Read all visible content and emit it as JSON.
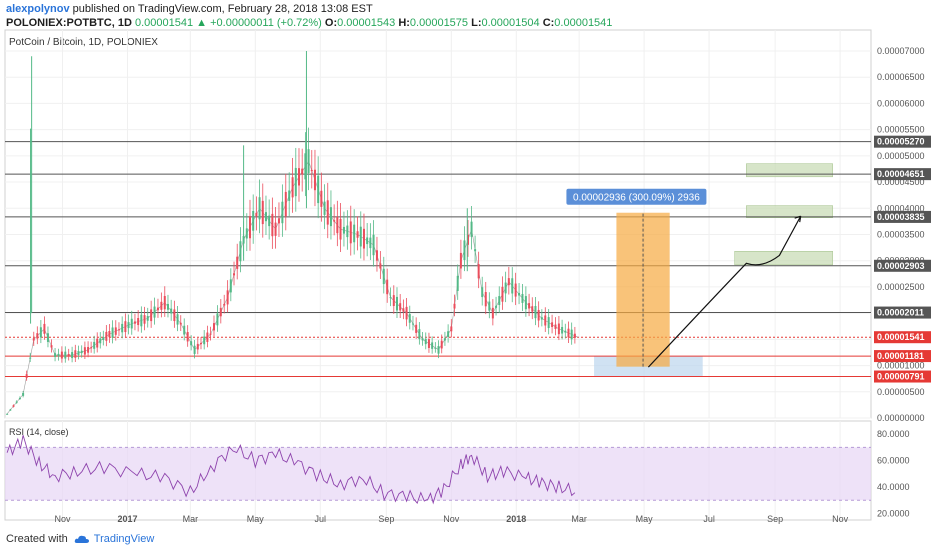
{
  "header": {
    "author": "alexpolynov",
    "published": "published on TradingView.com, February 28, 2018 13:08 EST",
    "symbol": "POLONIEX:POTBTC, 1D",
    "last": "0.00001541",
    "change": "+0.00000011 (+0.72%)",
    "o_label": "O:",
    "o": "0.00001543",
    "h_label": "H:",
    "h": "0.00001575",
    "l_label": "L:",
    "l": "0.00001504",
    "c_label": "C:",
    "c": "0.00001541"
  },
  "footer": {
    "created_with": "Created with",
    "brand": "TradingView"
  },
  "chart_data": {
    "type": "candlestick",
    "title": "PotCoin / Bitcoin, 1D, POLONIEX",
    "y_ticks": [
      "0.00007000",
      "0.00006500",
      "0.00006000",
      "0.00005500",
      "0.00005000",
      "0.00004500",
      "0.00004000",
      "0.00003500",
      "0.00003000",
      "0.00002500",
      "0.00002000",
      "0.00001500",
      "0.00001000",
      "0.00000500",
      "0.00000000"
    ],
    "x_labels": [
      "Nov",
      "2017",
      "Mar",
      "May",
      "Jul",
      "Sep",
      "Nov",
      "2018",
      "Mar",
      "May",
      "Jul",
      "Sep",
      "Nov"
    ],
    "ylim": [
      0,
      7.4e-05
    ],
    "xlim": [
      "2016-09-08",
      "2018-11-30"
    ],
    "price_series": [
      [
        "2016-09-10",
        8e-07
      ],
      [
        "2016-09-25",
        4.5e-06
      ],
      [
        "2016-10-05",
        1.5e-05
      ],
      [
        "2016-10-15",
        1.7e-05
      ],
      [
        "2016-10-25",
        1.2e-05
      ],
      [
        "2016-11-10",
        1.2e-05
      ],
      [
        "2016-11-25",
        1.3e-05
      ],
      [
        "2016-12-15",
        1.6e-05
      ],
      [
        "2017-01-05",
        1.8e-05
      ],
      [
        "2017-01-20",
        1.9e-05
      ],
      [
        "2017-02-05",
        2.2e-05
      ],
      [
        "2017-02-20",
        1.8e-05
      ],
      [
        "2017-03-05",
        1.3e-05
      ],
      [
        "2017-03-20",
        1.6e-05
      ],
      [
        "2017-04-05",
        2.3e-05
      ],
      [
        "2017-04-20",
        3.4e-05
      ],
      [
        "2017-05-05",
        4e-05
      ],
      [
        "2017-05-20",
        3.6e-05
      ],
      [
        "2017-06-05",
        4.4e-05
      ],
      [
        "2017-06-20",
        4.9e-05
      ],
      [
        "2017-07-05",
        4e-05
      ],
      [
        "2017-07-20",
        3.6e-05
      ],
      [
        "2017-08-05",
        3.5e-05
      ],
      [
        "2017-08-20",
        3.3e-05
      ],
      [
        "2017-09-05",
        2.3e-05
      ],
      [
        "2017-09-20",
        2e-05
      ],
      [
        "2017-10-05",
        1.5e-05
      ],
      [
        "2017-10-20",
        1.3e-05
      ],
      [
        "2017-11-01",
        1.7e-05
      ],
      [
        "2017-11-10",
        3e-05
      ],
      [
        "2017-11-20",
        3.6e-05
      ],
      [
        "2017-11-30",
        2.4e-05
      ],
      [
        "2017-12-10",
        2e-05
      ],
      [
        "2017-12-25",
        2.6e-05
      ],
      [
        "2018-01-10",
        2.2e-05
      ],
      [
        "2018-01-25",
        1.9e-05
      ],
      [
        "2018-02-10",
        1.7e-05
      ],
      [
        "2018-02-28",
        1.541e-05
      ]
    ],
    "horizontal_levels": [
      {
        "value": 5.27e-05,
        "label": "0.00005270",
        "color": "#555555"
      },
      {
        "value": 4.651e-05,
        "label": "0.00004651",
        "color": "#555555"
      },
      {
        "value": 3.835e-05,
        "label": "0.00003835",
        "color": "#555555"
      },
      {
        "value": 2.903e-05,
        "label": "0.00002903",
        "color": "#555555"
      },
      {
        "value": 2.011e-05,
        "label": "0.00002011",
        "color": "#555555"
      },
      {
        "value": 1.541e-05,
        "label": "0.00001541",
        "color": "#e53935"
      },
      {
        "value": 1.181e-05,
        "label": "0.00001181",
        "color": "#e53935"
      },
      {
        "value": 7.91e-06,
        "label": "0.00000791",
        "color": "#e53935"
      }
    ],
    "measure": {
      "from": 9.79e-06,
      "to": 3.915e-05,
      "label": "0.00002936 (300.09%) 2936",
      "color": "#f7a940"
    },
    "target_zones": [
      {
        "bottom": 4.6e-05,
        "top": 4.85e-05
      },
      {
        "bottom": 3.82e-05,
        "top": 4.05e-05
      },
      {
        "bottom": 2.92e-05,
        "top": 3.18e-05
      }
    ],
    "buy_zone": {
      "bottom": 8e-06,
      "top": 1.18e-05
    },
    "rsi": {
      "label": "RSI (14, close)",
      "y_ticks": [
        "80.0000",
        "60.0000",
        "40.0000",
        "20.0000"
      ],
      "ylim": [
        15,
        90
      ],
      "band": [
        30,
        70
      ],
      "series": [
        [
          "2016-09-10",
          66
        ],
        [
          "2016-09-25",
          75
        ],
        [
          "2016-10-10",
          58
        ],
        [
          "2016-10-25",
          48
        ],
        [
          "2016-11-15",
          52
        ],
        [
          "2016-12-10",
          55
        ],
        [
          "2017-01-10",
          50
        ],
        [
          "2017-02-05",
          47
        ],
        [
          "2017-03-01",
          36
        ],
        [
          "2017-03-20",
          54
        ],
        [
          "2017-04-10",
          70
        ],
        [
          "2017-05-01",
          60
        ],
        [
          "2017-05-20",
          65
        ],
        [
          "2017-06-10",
          58
        ],
        [
          "2017-07-01",
          48
        ],
        [
          "2017-07-20",
          42
        ],
        [
          "2017-08-10",
          47
        ],
        [
          "2017-08-30",
          35
        ],
        [
          "2017-09-20",
          33
        ],
        [
          "2017-10-10",
          30
        ],
        [
          "2017-10-25",
          38
        ],
        [
          "2017-11-10",
          57
        ],
        [
          "2017-11-20",
          64
        ],
        [
          "2017-12-05",
          48
        ],
        [
          "2017-12-20",
          52
        ],
        [
          "2018-01-10",
          47
        ],
        [
          "2018-01-25",
          43
        ],
        [
          "2018-02-10",
          40
        ],
        [
          "2018-02-28",
          36
        ]
      ]
    }
  }
}
